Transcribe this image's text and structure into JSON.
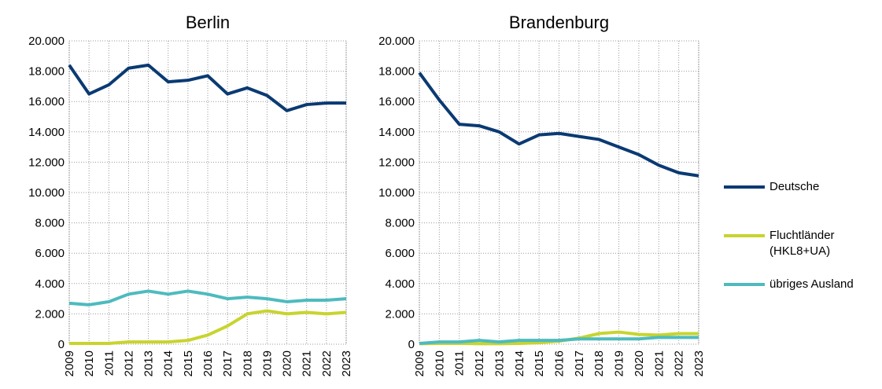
{
  "chart_data": [
    {
      "type": "line",
      "title": "Berlin",
      "categories": [
        "2009",
        "2010",
        "2011",
        "2012",
        "2013",
        "2014",
        "2015",
        "2016",
        "2017",
        "2018",
        "2019",
        "2020",
        "2021",
        "2022",
        "2023"
      ],
      "series": [
        {
          "name": "Deutsche",
          "color": "#0a3a73",
          "values": [
            18400,
            16500,
            17100,
            18200,
            18400,
            17300,
            17400,
            17700,
            16500,
            16900,
            16400,
            15400,
            15800,
            15900,
            15900
          ]
        },
        {
          "name": "Fluchtländer (HKL8+UA)",
          "color": "#c8d42e",
          "values": [
            50,
            50,
            50,
            150,
            150,
            150,
            250,
            600,
            1200,
            2000,
            2200,
            2000,
            2100,
            2000,
            2100
          ]
        },
        {
          "name": "übriges Ausland",
          "color": "#4dbbbe",
          "values": [
            2700,
            2600,
            2800,
            3300,
            3500,
            3300,
            3500,
            3300,
            3000,
            3100,
            3000,
            2800,
            2900,
            2900,
            3000
          ]
        }
      ],
      "ylim": [
        0,
        20000
      ],
      "yticks": [
        0,
        {
          "value": 2000,
          "label": "2.000"
        },
        {
          "value": 4000,
          "label": "4.000"
        },
        {
          "value": 6000,
          "label": "6.000"
        },
        {
          "value": 8000,
          "label": "8.000"
        },
        {
          "value": 10000,
          "label": "10.000"
        },
        {
          "value": 12000,
          "label": "12.000"
        },
        {
          "value": 14000,
          "label": "14.000"
        },
        {
          "value": 16000,
          "label": "16.000"
        },
        {
          "value": 18000,
          "label": "18.000"
        },
        {
          "value": 20000,
          "label": "20.000"
        }
      ],
      "grid": true
    },
    {
      "type": "line",
      "title": "Brandenburg",
      "categories": [
        "2009",
        "2010",
        "2011",
        "2012",
        "2013",
        "2014",
        "2015",
        "2016",
        "2017",
        "2018",
        "2019",
        "2020",
        "2021",
        "2022",
        "2023"
      ],
      "series": [
        {
          "name": "Deutsche",
          "color": "#0a3a73",
          "values": [
            17900,
            16100,
            14500,
            14400,
            14000,
            13200,
            13800,
            13900,
            13700,
            13500,
            13000,
            12500,
            11800,
            11300,
            11100
          ]
        },
        {
          "name": "Fluchtländer (HKL8+UA)",
          "color": "#c8d42e",
          "values": [
            30,
            50,
            50,
            30,
            30,
            50,
            100,
            200,
            400,
            700,
            800,
            650,
            600,
            700,
            700
          ]
        },
        {
          "name": "übriges Ausland",
          "color": "#4dbbbe",
          "values": [
            50,
            150,
            150,
            250,
            150,
            250,
            250,
            250,
            350,
            350,
            350,
            350,
            450,
            450,
            450
          ]
        }
      ],
      "ylim": [
        0,
        20000
      ],
      "yticks": [
        0,
        {
          "value": 2000,
          "label": "2.000"
        },
        {
          "value": 4000,
          "label": "4.000"
        },
        {
          "value": 6000,
          "label": "6.000"
        },
        {
          "value": 8000,
          "label": "8.000"
        },
        {
          "value": 10000,
          "label": "10.000"
        },
        {
          "value": 12000,
          "label": "12.000"
        },
        {
          "value": 14000,
          "label": "14.000"
        },
        {
          "value": 16000,
          "label": "16.000"
        },
        {
          "value": 18000,
          "label": "18.000"
        },
        {
          "value": 20000,
          "label": "20.000"
        }
      ],
      "grid": true
    }
  ]
}
